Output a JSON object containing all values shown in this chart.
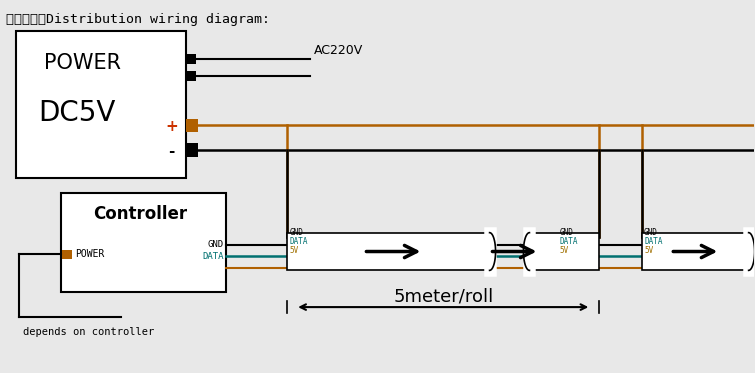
{
  "bg_color": "#e8e8e8",
  "title": "配电接线图Distribution wiring diagram:",
  "power_label": "POWER",
  "dc_label": "DC5V",
  "ac_label": "AC220V",
  "controller_label": "Controller",
  "power_label2": "POWER",
  "gnd_label": "GND",
  "data_label": "DATA",
  "v5_label": "5V",
  "dim_label": "5meter/roll",
  "depends_label": "depends on controller",
  "BLACK": "#000000",
  "ORANGE": "#b06000",
  "TEAL": "#007070",
  "GOLD": "#a07000",
  "WHITE": "#ffffff",
  "RED": "#cc3300"
}
